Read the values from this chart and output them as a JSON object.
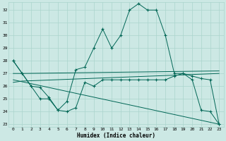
{
  "title": "",
  "xlabel": "Humidex (Indice chaleur)",
  "background_color": "#cce8e4",
  "grid_color": "#aad4cc",
  "line_color": "#006655",
  "xlim": [
    -0.5,
    23.5
  ],
  "ylim": [
    22.8,
    32.6
  ],
  "yticks": [
    23,
    24,
    25,
    26,
    27,
    28,
    29,
    30,
    31,
    32
  ],
  "xticks": [
    0,
    1,
    2,
    3,
    4,
    5,
    6,
    7,
    8,
    9,
    10,
    11,
    12,
    13,
    14,
    15,
    16,
    17,
    18,
    19,
    20,
    21,
    22,
    23
  ],
  "series_main": {
    "x": [
      0,
      1,
      2,
      3,
      4,
      5,
      6,
      7,
      8,
      9,
      10,
      11,
      12,
      13,
      14,
      15,
      16,
      17,
      18,
      19,
      20,
      21,
      22,
      23
    ],
    "y": [
      28,
      27,
      26,
      25,
      25,
      24.1,
      24.8,
      27.3,
      27.5,
      29,
      30.5,
      29,
      30,
      32,
      32.5,
      32,
      32,
      30,
      27,
      27,
      26.5,
      24.1,
      24,
      23
    ]
  },
  "series_upper_flat": {
    "x": [
      0,
      1,
      23
    ],
    "y": [
      27,
      27,
      27.2
    ]
  },
  "series_lower_flat": {
    "x": [
      0,
      1,
      23
    ],
    "y": [
      26.3,
      26.4,
      27.0
    ]
  },
  "series_diagonal": {
    "x": [
      0,
      23
    ],
    "y": [
      26.5,
      23.0
    ]
  },
  "series_lower_wiggly": {
    "x": [
      0,
      1,
      2,
      3,
      4,
      5,
      6,
      7,
      8,
      9,
      10,
      11,
      12,
      13,
      14,
      15,
      16,
      17,
      18,
      19,
      20,
      21,
      22,
      23
    ],
    "y": [
      28,
      27,
      26,
      25.9,
      25.1,
      24.1,
      24,
      24.3,
      26.3,
      26,
      26.5,
      26.5,
      26.5,
      26.5,
      26.5,
      26.5,
      26.5,
      26.5,
      26.8,
      27,
      26.8,
      26.6,
      26.5,
      23
    ]
  }
}
